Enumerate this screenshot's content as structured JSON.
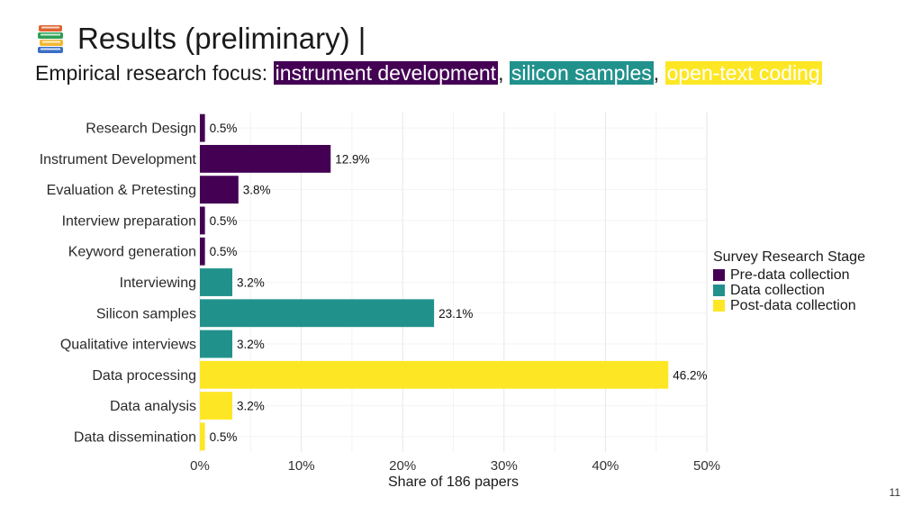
{
  "header": {
    "title": "Results (preliminary) |",
    "icon": "books-icon",
    "subtitle_prefix": "Empirical research focus: ",
    "highlights": [
      {
        "text": "instrument development",
        "color": "#440154"
      },
      {
        "text": "silicon samples",
        "color": "#21918c"
      },
      {
        "text": "open-text coding",
        "color": "#fde725"
      }
    ],
    "separator": ", "
  },
  "chart_data": {
    "type": "bar",
    "orientation": "horizontal",
    "categories": [
      "Research Design",
      "Instrument Development",
      "Evaluation & Pretesting",
      "Interview preparation",
      "Keyword generation",
      "Interviewing",
      "Silicon samples",
      "Qualitative interviews",
      "Data processing",
      "Data analysis",
      "Data dissemination"
    ],
    "values": [
      0.5,
      12.9,
      3.8,
      0.5,
      0.5,
      3.2,
      23.1,
      3.2,
      46.2,
      3.2,
      0.5
    ],
    "value_labels": [
      "0.5%",
      "12.9%",
      "3.8%",
      "0.5%",
      "0.5%",
      "3.2%",
      "23.1%",
      "3.2%",
      "46.2%",
      "3.2%",
      "0.5%"
    ],
    "stages": [
      "Pre-data collection",
      "Pre-data collection",
      "Pre-data collection",
      "Pre-data collection",
      "Pre-data collection",
      "Data collection",
      "Data collection",
      "Data collection",
      "Post-data collection",
      "Post-data collection",
      "Post-data collection"
    ],
    "xlabel": "Share of 186 papers",
    "ylabel": "",
    "xlim": [
      0,
      50
    ],
    "xticks": [
      0,
      10,
      20,
      30,
      40,
      50
    ],
    "xtick_labels": [
      "0%",
      "10%",
      "20%",
      "30%",
      "40%",
      "50%"
    ],
    "legend": {
      "title": "Survey Research Stage",
      "placement": "right",
      "entries": [
        {
          "label": "Pre-data collection",
          "color": "#440154"
        },
        {
          "label": "Data collection",
          "color": "#21918c"
        },
        {
          "label": "Post-data collection",
          "color": "#fde725"
        }
      ]
    },
    "grid": true
  },
  "footer": {
    "page_number": "11"
  }
}
